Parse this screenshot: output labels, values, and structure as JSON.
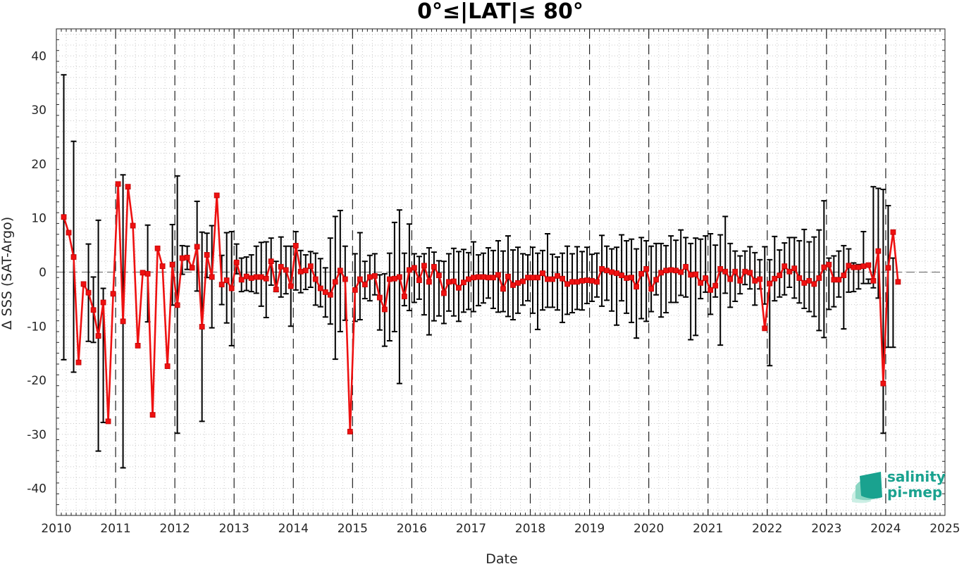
{
  "chart_data": {
    "type": "line",
    "title": "0°≤|LAT|≤ 80°",
    "xlabel": "Date",
    "ylabel": "Δ SSS (SAT-Argo)",
    "xlim": [
      2010,
      2025
    ],
    "ylim": [
      -45,
      45
    ],
    "x_ticks": [
      "2010",
      "2011",
      "2012",
      "2013",
      "2014",
      "2015",
      "2016",
      "2017",
      "2018",
      "2019",
      "2020",
      "2021",
      "2022",
      "2023",
      "2024",
      "2025"
    ],
    "y_ticks": [
      "40",
      "30",
      "20",
      "10",
      "0",
      "-10",
      "-20",
      "-30",
      "-40"
    ],
    "grid": true,
    "year_lines": "dashed",
    "zero_line": "dashed",
    "series": [
      {
        "marker": "square",
        "color": "#ee1111",
        "errorbar_color": "#000000",
        "x_start": 2010.125,
        "x_step": 0.08333,
        "values": [
          10.2,
          7.3,
          2.8,
          -16.7,
          -2.2,
          -3.8,
          -7.0,
          -11.8,
          -5.6,
          -27.6,
          -4.0,
          16.3,
          -9.1,
          15.8,
          8.6,
          -13.6,
          -0.1,
          -0.3,
          -26.4,
          4.4,
          1.1,
          -17.4,
          1.4,
          -6.1,
          2.6,
          2.7,
          0.8,
          4.7,
          -10.1,
          3.2,
          -0.9,
          14.2,
          -2.3,
          -1.5,
          -3.0,
          1.8,
          -1.4,
          -0.8,
          -1.1,
          -0.9,
          -0.9,
          -1.2,
          2.0,
          -3.2,
          1.0,
          0.4,
          -2.6,
          4.9,
          0.1,
          0.3,
          1.1,
          -1.3,
          -3.0,
          -3.7,
          -4.2,
          -1.8,
          0.3,
          -1.3,
          -29.5,
          -3.3,
          -1.3,
          -2.3,
          -0.9,
          -0.7,
          -4.7,
          -6.9,
          -1.3,
          -1.2,
          -0.9,
          -4.5,
          0.4,
          0.8,
          -1.5,
          1.2,
          -1.8,
          1.0,
          -0.6,
          -3.9,
          -1.8,
          -1.7,
          -2.9,
          -1.9,
          -1.3,
          -1.0,
          -0.9,
          -0.9,
          -1.0,
          -1.0,
          -0.5,
          -3.1,
          -0.8,
          -2.4,
          -2.0,
          -1.7,
          -1.0,
          -1.0,
          -1.0,
          -0.2,
          -1.3,
          -1.3,
          -0.7,
          -1.2,
          -2.2,
          -1.8,
          -1.8,
          -1.6,
          -1.5,
          -1.6,
          -1.8,
          0.6,
          0.3,
          0.0,
          -0.2,
          -0.6,
          -1.1,
          -1.0,
          -2.7,
          -0.3,
          0.6,
          -3.1,
          -1.4,
          -0.1,
          0.3,
          0.4,
          0.3,
          0.0,
          1.0,
          -0.5,
          -0.4,
          -2.0,
          -1.1,
          -3.3,
          -2.5,
          0.6,
          0.1,
          -1.3,
          0.1,
          -1.6,
          0.1,
          -0.1,
          -1.6,
          -1.3,
          -10.4,
          -2.1,
          -1.2,
          -0.6,
          1.1,
          0.1,
          0.7,
          -1.1,
          -2.0,
          -1.6,
          -2.2,
          -1.1,
          0.9,
          1.4,
          -1.4,
          -1.4,
          -0.6,
          1.2,
          0.9,
          0.9,
          1.1,
          1.3,
          -1.6,
          3.9,
          -20.6,
          0.8,
          7.4,
          -1.8
        ],
        "err_upper": [
          36.5,
          null,
          24.2,
          null,
          null,
          5.2,
          -0.9,
          9.6,
          -3.0,
          null,
          null,
          null,
          18.0,
          null,
          null,
          null,
          null,
          8.7,
          null,
          null,
          null,
          null,
          8.8,
          17.8,
          4.9,
          4.8,
          null,
          13.1,
          7.4,
          7.2,
          8.6,
          null,
          3.1,
          7.3,
          7.5,
          5.2,
          2.6,
          2.8,
          3.2,
          4.8,
          5.5,
          5.6,
          6.3,
          2.0,
          6.5,
          4.8,
          4.8,
          7.5,
          4.0,
          3.2,
          3.8,
          3.5,
          2.5,
          0.8,
          6.3,
          10.3,
          11.4,
          4.8,
          null,
          3.4,
          7.3,
          2.0,
          3.1,
          3.4,
          -0.5,
          -0.3,
          3.5,
          9.2,
          11.5,
          3.5,
          8.9,
          3.4,
          2.9,
          3.4,
          4.5,
          3.7,
          2.1,
          2.0,
          3.4,
          4.4,
          3.8,
          4.2,
          3.6,
          5.6,
          3.2,
          3.5,
          4.5,
          4.0,
          5.8,
          3.9,
          6.7,
          4.1,
          4.6,
          3.4,
          3.2,
          4.6,
          3.5,
          4.0,
          7.1,
          3.3,
          2.8,
          3.5,
          4.8,
          3.4,
          4.7,
          3.8,
          4.6,
          3.3,
          3.5,
          6.8,
          4.8,
          4.3,
          4.6,
          6.9,
          5.8,
          6.1,
          4.3,
          6.4,
          5.8,
          4.8,
          5.3,
          5.3,
          4.9,
          6.7,
          5.9,
          7.8,
          6.4,
          5.3,
          6.3,
          6.1,
          6.7,
          7.1,
          5.0,
          6.9,
          10.3,
          5.3,
          3.9,
          3.0,
          3.9,
          4.7,
          3.6,
          2.3,
          4.7,
          2.3,
          6.6,
          4.1,
          5.4,
          6.4,
          6.4,
          5.8,
          7.9,
          5.6,
          6.5,
          7.8,
          13.2,
          2.6,
          3.0,
          3.9,
          4.9,
          4.3,
          1.7,
          1.4,
          7.5,
          -1.3,
          15.8,
          15.5,
          15.3,
          12.3,
          2.6
        ],
        "err_lower": [
          -16.2,
          null,
          -18.5,
          null,
          null,
          -12.8,
          -13.0,
          -33.1,
          -27.8,
          null,
          null,
          null,
          -36.2,
          null,
          null,
          null,
          null,
          -9.2,
          null,
          null,
          null,
          null,
          -6.1,
          -29.8,
          -0.4,
          0.5,
          null,
          -3.5,
          -27.6,
          -1.0,
          -10.3,
          null,
          -6.0,
          -9.4,
          -13.6,
          -0.3,
          -3.6,
          -3.4,
          -3.6,
          -3.9,
          -6.3,
          -8.4,
          -2.4,
          -3.6,
          -4.6,
          -4.0,
          -10.0,
          -3.3,
          -3.8,
          -3.2,
          -2.8,
          -6.1,
          -6.4,
          -8.3,
          -9.6,
          -16.1,
          -11.0,
          -8.9,
          null,
          -9.1,
          -8.8,
          -4.9,
          -5.3,
          -4.2,
          -10.7,
          -13.7,
          -12.7,
          -11.0,
          -20.6,
          -6.2,
          -7.1,
          -5.6,
          -5.0,
          -7.9,
          -11.6,
          -9.0,
          -8.1,
          -9.5,
          -7.2,
          -8.1,
          -9.1,
          -7.4,
          -6.9,
          -7.3,
          -6.2,
          -5.7,
          -4.8,
          -6.7,
          -7.4,
          -7.3,
          -8.2,
          -8.8,
          -7.6,
          -6.1,
          -5.3,
          -7.6,
          -10.6,
          -7.0,
          -6.5,
          -6.5,
          -7.0,
          -9.3,
          -7.8,
          -7.5,
          -6.9,
          -7.0,
          -5.8,
          -5.4,
          -4.6,
          -6.3,
          -5.2,
          -7.2,
          -9.8,
          -5.3,
          -7.6,
          -9.3,
          -12.2,
          -8.6,
          -9.1,
          -7.3,
          -4.2,
          -8.3,
          -7.5,
          -5.6,
          -5.6,
          -4.3,
          -4.6,
          -12.5,
          -11.7,
          -4.9,
          -3.7,
          -7.8,
          -4.6,
          -13.5,
          -3.9,
          -6.5,
          -5.4,
          -4.0,
          -2.3,
          -3.1,
          -6.1,
          -3.1,
          -5.9,
          -17.3,
          -5.3,
          -4.6,
          -4.2,
          -2.8,
          -4.8,
          -5.7,
          -6.7,
          -7.3,
          -8.2,
          -10.8,
          -12.1,
          -6.9,
          -6.4,
          -4.6,
          -10.5,
          -3.7,
          -3.6,
          -3.1,
          -2.1,
          -2.1,
          -2.9,
          -4.8,
          -29.8,
          -13.9,
          -13.9,
          -2.5,
          -6.2
        ]
      }
    ]
  },
  "logo": {
    "line1": "salinity",
    "line2": "pi-mep",
    "colors": [
      "#1aa28f",
      "#7fd1bd",
      "#c3ece0"
    ]
  }
}
